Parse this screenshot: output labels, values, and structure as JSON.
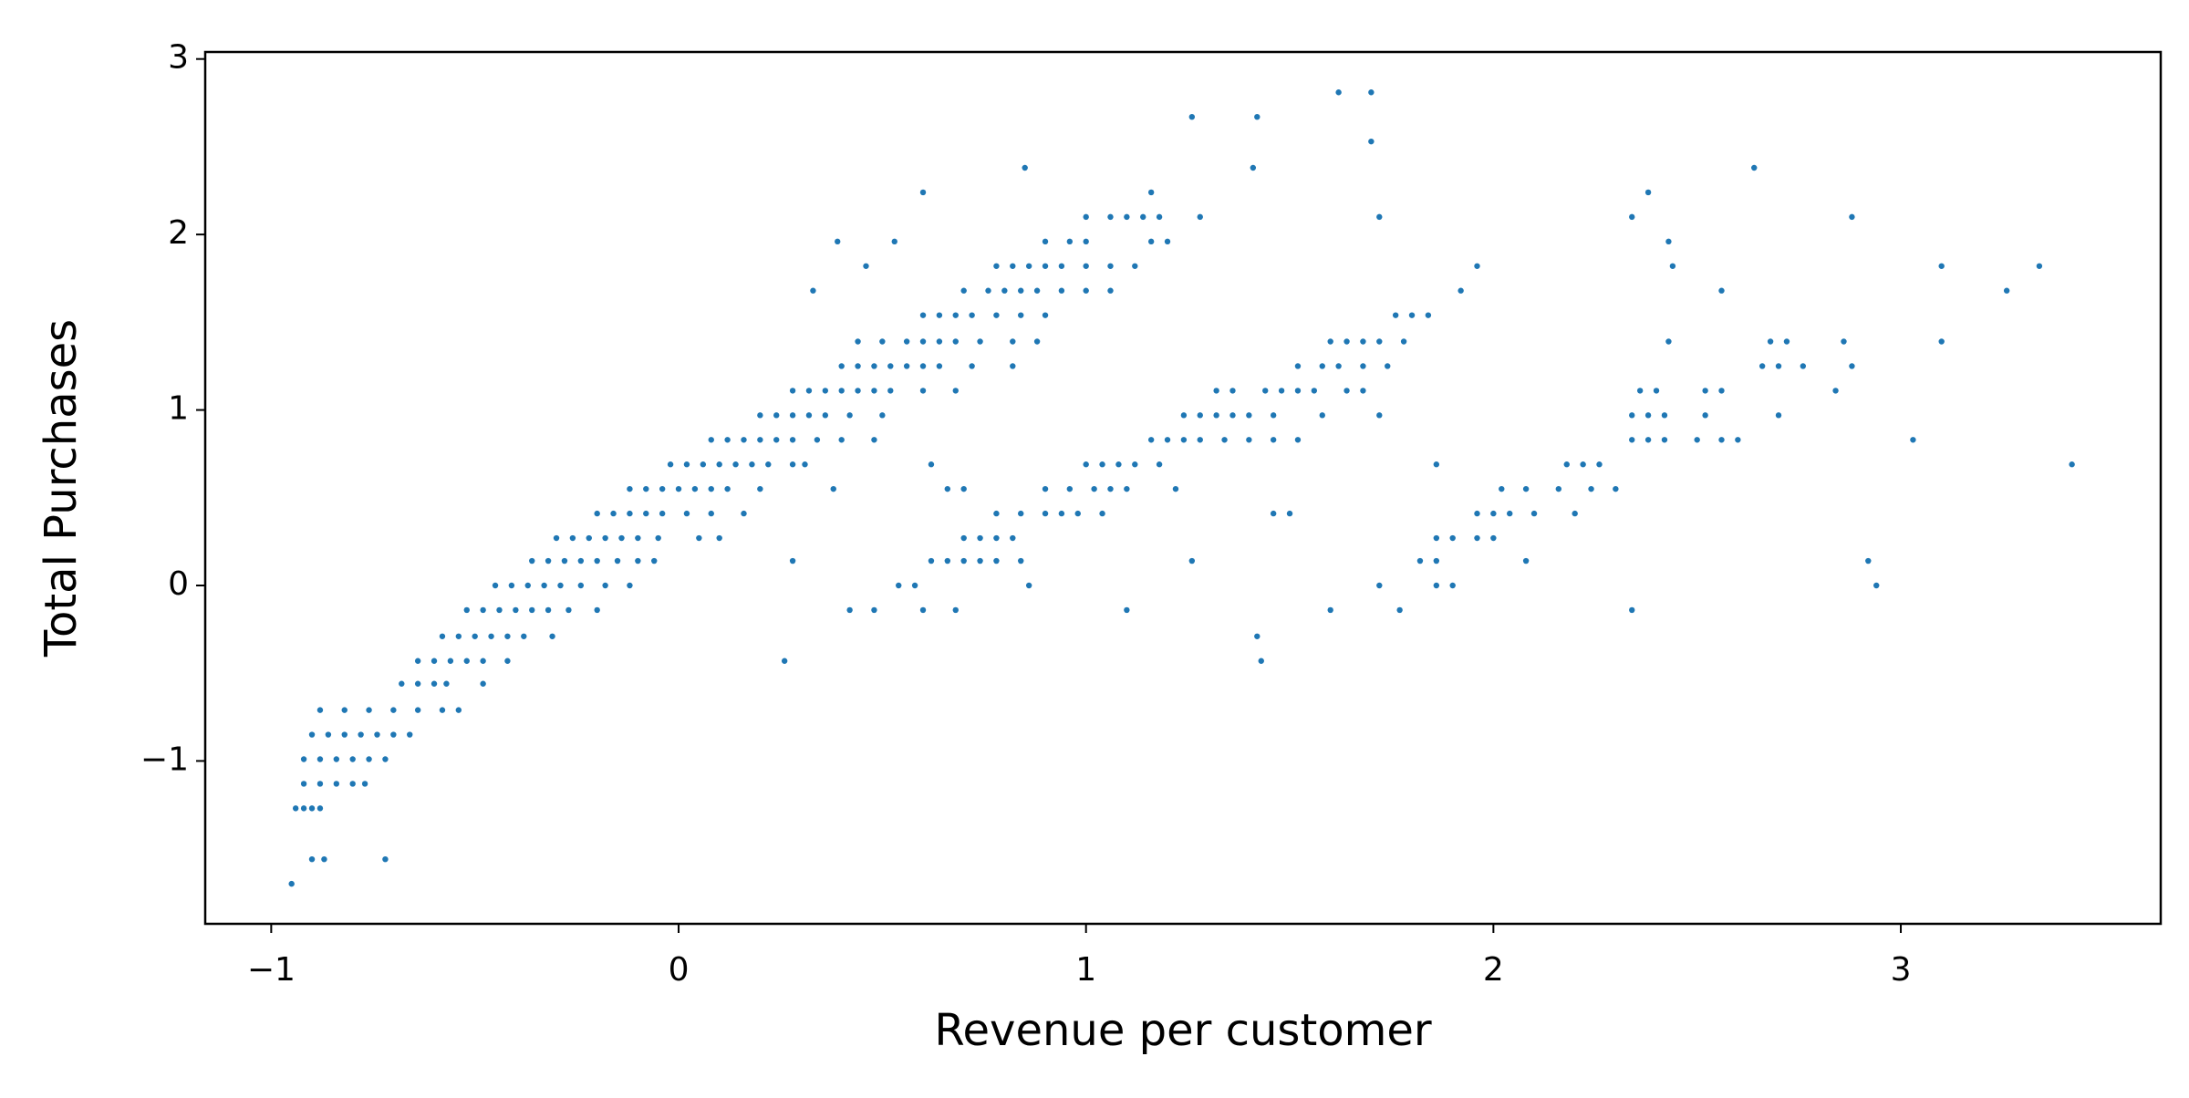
{
  "chart_data": {
    "type": "scatter",
    "x_label": "Revenue per customer",
    "y_label": "Total Purchases",
    "color": "#1f77b4",
    "grid": false,
    "xlim": [
      -1.162,
      3.638
    ],
    "ylim": [
      -1.928,
      3.04
    ],
    "xticks": [
      {
        "value": -1,
        "label": "−1"
      },
      0,
      1,
      2,
      3
    ],
    "yticks": [
      {
        "value": -1,
        "label": "−1"
      },
      0,
      1,
      2,
      3
    ],
    "x": [
      -0.95,
      -0.9,
      -0.87,
      -0.72,
      -0.94,
      -0.92,
      -0.9,
      -0.88,
      -0.92,
      -0.88,
      -0.84,
      -0.8,
      -0.77,
      -0.92,
      -0.88,
      -0.84,
      -0.8,
      -0.76,
      -0.72,
      -0.9,
      -0.86,
      -0.82,
      -0.78,
      -0.74,
      -0.7,
      -0.66,
      -0.88,
      -0.82,
      -0.76,
      -0.7,
      -0.64,
      -0.58,
      -0.54,
      -0.68,
      -0.64,
      -0.6,
      -0.57,
      -0.48,
      -0.64,
      -0.6,
      -0.56,
      -0.52,
      -0.48,
      -0.42,
      -0.58,
      -0.54,
      -0.5,
      -0.46,
      -0.42,
      -0.38,
      -0.31,
      -0.52,
      -0.48,
      -0.44,
      -0.4,
      -0.36,
      -0.32,
      -0.27,
      -0.2,
      -0.45,
      -0.41,
      -0.37,
      -0.33,
      -0.29,
      -0.24,
      -0.18,
      -0.12,
      -0.36,
      -0.32,
      -0.28,
      -0.24,
      -0.2,
      -0.15,
      -0.1,
      -0.06,
      -0.3,
      -0.26,
      -0.22,
      -0.18,
      -0.14,
      -0.1,
      -0.05,
      0.05,
      0.1,
      -0.2,
      -0.16,
      -0.12,
      -0.08,
      -0.04,
      0.02,
      0.08,
      0.16,
      -0.12,
      -0.08,
      -0.04,
      0,
      0.04,
      0.08,
      0.12,
      0.2,
      0.38,
      -0.02,
      0.02,
      0.06,
      0.1,
      0.14,
      0.18,
      0.22,
      0.28,
      0.31,
      0.08,
      0.12,
      0.16,
      0.2,
      0.24,
      0.28,
      0.34,
      0.4,
      0.48,
      0.2,
      0.24,
      0.28,
      0.32,
      0.36,
      0.42,
      0.5,
      0.28,
      0.32,
      0.36,
      0.4,
      0.44,
      0.48,
      0.52,
      0.6,
      0.68,
      0.4,
      0.44,
      0.48,
      0.52,
      0.56,
      0.6,
      0.64,
      0.72,
      0.82,
      0.44,
      0.5,
      0.56,
      0.6,
      0.64,
      0.68,
      0.74,
      0.82,
      0.88,
      0.6,
      0.64,
      0.68,
      0.72,
      0.78,
      0.84,
      0.9,
      0.7,
      0.76,
      0.8,
      0.84,
      0.88,
      0.94,
      1.0,
      1.06,
      0.78,
      0.82,
      0.86,
      0.9,
      0.94,
      1.0,
      1.06,
      1.12,
      0.9,
      0.96,
      1.0,
      1.16,
      1.2,
      1.0,
      1.06,
      1.1,
      1.14,
      1.18,
      1.28,
      0.6,
      1.16,
      0.33,
      0.39,
      0.46,
      0.53,
      0.85,
      1.26,
      1.42,
      1.41,
      1.62,
      1.7,
      1.7,
      1.72,
      0.26,
      0.28,
      0.42,
      0.48,
      0.6,
      0.68,
      1.1,
      0.54,
      0.58,
      0.86,
      0.62,
      0.66,
      0.7,
      0.74,
      0.78,
      0.84,
      1.26,
      0.7,
      0.74,
      0.78,
      0.82,
      0.78,
      0.84,
      0.9,
      0.94,
      0.98,
      1.04,
      1.46,
      1.5,
      0.66,
      0.7,
      0.9,
      0.96,
      1.02,
      1.06,
      1.1,
      1.22,
      0.62,
      1.0,
      1.04,
      1.08,
      1.12,
      1.18,
      1.16,
      1.2,
      1.24,
      1.28,
      1.34,
      1.4,
      1.46,
      1.52,
      1.24,
      1.28,
      1.32,
      1.36,
      1.4,
      1.46,
      1.58,
      1.72,
      1.32,
      1.36,
      1.44,
      1.48,
      1.52,
      1.56,
      1.64,
      1.68,
      1.52,
      1.58,
      1.62,
      1.68,
      1.74,
      1.6,
      1.64,
      1.68,
      1.72,
      1.78,
      1.76,
      1.8,
      1.84,
      1.92,
      1.96,
      1.42,
      1.43,
      1.6,
      1.72,
      1.77,
      1.86,
      1.9,
      1.82,
      1.86,
      2.08,
      1.86,
      1.9,
      1.96,
      2.0,
      1.96,
      2.0,
      2.04,
      2.1,
      2.2,
      2.02,
      2.08,
      2.16,
      2.24,
      2.3,
      1.86,
      2.18,
      2.22,
      2.26,
      2.34,
      2.38,
      2.42,
      2.5,
      2.56,
      2.6,
      2.34,
      2.38,
      2.42,
      2.52,
      2.7,
      2.36,
      2.4,
      2.52,
      2.56,
      2.84,
      2.66,
      2.7,
      2.76,
      2.88,
      2.43,
      2.68,
      2.72,
      2.86,
      2.56,
      3.26,
      2.44,
      3.1,
      3.34,
      2.34,
      2.88,
      3.03,
      3.42,
      2.92,
      2.94,
      2.34,
      2.38,
      2.43,
      2.64,
      3.1
    ],
    "values": [
      -1.7,
      -1.56,
      -1.56,
      -1.56,
      -1.27,
      -1.27,
      -1.27,
      -1.27,
      -1.13,
      -1.13,
      -1.13,
      -1.13,
      -1.13,
      -0.99,
      -0.99,
      -0.99,
      -0.99,
      -0.99,
      -0.99,
      -0.85,
      -0.85,
      -0.85,
      -0.85,
      -0.85,
      -0.85,
      -0.85,
      -0.71,
      -0.71,
      -0.71,
      -0.71,
      -0.71,
      -0.71,
      -0.71,
      -0.56,
      -0.56,
      -0.56,
      -0.56,
      -0.56,
      -0.43,
      -0.43,
      -0.43,
      -0.43,
      -0.43,
      -0.43,
      -0.29,
      -0.29,
      -0.29,
      -0.29,
      -0.29,
      -0.29,
      -0.29,
      -0.14,
      -0.14,
      -0.14,
      -0.14,
      -0.14,
      -0.14,
      -0.14,
      -0.14,
      0,
      0,
      0,
      0,
      0,
      0,
      0,
      0,
      0.14,
      0.14,
      0.14,
      0.14,
      0.14,
      0.14,
      0.14,
      0.14,
      0.27,
      0.27,
      0.27,
      0.27,
      0.27,
      0.27,
      0.27,
      0.27,
      0.27,
      0.41,
      0.41,
      0.41,
      0.41,
      0.41,
      0.41,
      0.41,
      0.41,
      0.55,
      0.55,
      0.55,
      0.55,
      0.55,
      0.55,
      0.55,
      0.55,
      0.55,
      0.69,
      0.69,
      0.69,
      0.69,
      0.69,
      0.69,
      0.69,
      0.69,
      0.69,
      0.83,
      0.83,
      0.83,
      0.83,
      0.83,
      0.83,
      0.83,
      0.83,
      0.83,
      0.97,
      0.97,
      0.97,
      0.97,
      0.97,
      0.97,
      0.97,
      1.11,
      1.11,
      1.11,
      1.11,
      1.11,
      1.11,
      1.11,
      1.11,
      1.11,
      1.25,
      1.25,
      1.25,
      1.25,
      1.25,
      1.25,
      1.25,
      1.25,
      1.25,
      1.39,
      1.39,
      1.39,
      1.39,
      1.39,
      1.39,
      1.39,
      1.39,
      1.39,
      1.54,
      1.54,
      1.54,
      1.54,
      1.54,
      1.54,
      1.54,
      1.68,
      1.68,
      1.68,
      1.68,
      1.68,
      1.68,
      1.68,
      1.68,
      1.82,
      1.82,
      1.82,
      1.82,
      1.82,
      1.82,
      1.82,
      1.82,
      1.96,
      1.96,
      1.96,
      1.96,
      1.96,
      2.1,
      2.1,
      2.1,
      2.1,
      2.1,
      2.1,
      2.24,
      2.24,
      1.68,
      1.96,
      1.82,
      1.96,
      2.38,
      2.67,
      2.67,
      2.38,
      2.81,
      2.81,
      2.53,
      2.1,
      -0.43,
      0.14,
      -0.14,
      -0.14,
      -0.14,
      -0.14,
      -0.14,
      0,
      0,
      0,
      0.14,
      0.14,
      0.14,
      0.14,
      0.14,
      0.14,
      0.14,
      0.27,
      0.27,
      0.27,
      0.27,
      0.41,
      0.41,
      0.41,
      0.41,
      0.41,
      0.41,
      0.41,
      0.41,
      0.55,
      0.55,
      0.55,
      0.55,
      0.55,
      0.55,
      0.55,
      0.55,
      0.69,
      0.69,
      0.69,
      0.69,
      0.69,
      0.69,
      0.83,
      0.83,
      0.83,
      0.83,
      0.83,
      0.83,
      0.83,
      0.83,
      0.97,
      0.97,
      0.97,
      0.97,
      0.97,
      0.97,
      0.97,
      0.97,
      1.11,
      1.11,
      1.11,
      1.11,
      1.11,
      1.11,
      1.11,
      1.11,
      1.25,
      1.25,
      1.25,
      1.25,
      1.25,
      1.39,
      1.39,
      1.39,
      1.39,
      1.39,
      1.54,
      1.54,
      1.54,
      1.68,
      1.82,
      -0.29,
      -0.43,
      -0.14,
      0,
      -0.14,
      0,
      0,
      0.14,
      0.14,
      0.14,
      0.27,
      0.27,
      0.27,
      0.27,
      0.41,
      0.41,
      0.41,
      0.41,
      0.41,
      0.55,
      0.55,
      0.55,
      0.55,
      0.55,
      0.69,
      0.69,
      0.69,
      0.69,
      0.83,
      0.83,
      0.83,
      0.83,
      0.83,
      0.83,
      0.97,
      0.97,
      0.97,
      0.97,
      0.97,
      1.11,
      1.11,
      1.11,
      1.11,
      1.11,
      1.25,
      1.25,
      1.25,
      1.25,
      1.39,
      1.39,
      1.39,
      1.39,
      1.68,
      1.68,
      1.82,
      1.82,
      1.82,
      2.1,
      2.1,
      0.83,
      0.69,
      0.14,
      0,
      -0.14,
      2.24,
      1.96,
      2.38,
      1.39
    ]
  }
}
